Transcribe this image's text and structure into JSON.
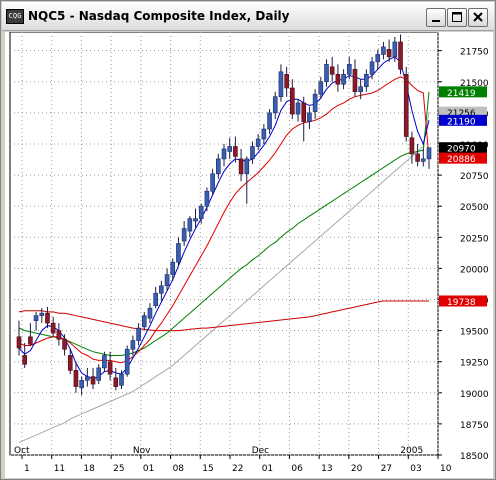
{
  "window": {
    "title": "NQC5 - Nasdaq Composite Index, Daily",
    "icon_text": "CQG"
  },
  "chart_data": {
    "type": "candlestick",
    "ylim": [
      18500,
      21900
    ],
    "y_ticks": [
      18500,
      18750,
      19000,
      19250,
      19500,
      19750,
      20000,
      20250,
      20500,
      20750,
      21000,
      21250,
      21500,
      21750
    ],
    "x_day_labels": [
      "1",
      "11",
      "18",
      "25",
      "01",
      "08",
      "15",
      "22",
      "01",
      "06",
      "13",
      "20",
      "27",
      "03",
      "10"
    ],
    "month_labels": [
      "Oct",
      "Nov",
      "Dec",
      "2005"
    ],
    "grid": true,
    "price_tags": [
      {
        "value": 21419,
        "label": "21419",
        "color": "#008000"
      },
      {
        "value": 21256,
        "label": "21256",
        "color": "#c0c0c0"
      },
      {
        "value": 21190,
        "label": "21190",
        "color": "#0000cc"
      },
      {
        "value": 20970,
        "label": "20970",
        "color": "#000000"
      },
      {
        "value": 20886,
        "label": "20886",
        "color": "#e00000"
      },
      {
        "value": 19738,
        "label": "19738",
        "color": "#e00000"
      }
    ],
    "candles": [
      [
        19450,
        19580,
        19360,
        19300
      ],
      [
        19300,
        19400,
        19230,
        19200
      ],
      [
        19450,
        19560,
        19390,
        19380
      ],
      [
        19580,
        19650,
        19620,
        19500
      ],
      [
        19620,
        19680,
        19640,
        19560
      ],
      [
        19640,
        19690,
        19560,
        19520
      ],
      [
        19560,
        19610,
        19480,
        19450
      ],
      [
        19500,
        19560,
        19430,
        19380
      ],
      [
        19430,
        19470,
        19350,
        19300
      ],
      [
        19300,
        19350,
        19180,
        19150
      ],
      [
        19180,
        19250,
        19050,
        19000
      ],
      [
        19040,
        19130,
        19100,
        18980
      ],
      [
        19100,
        19200,
        19130,
        19050
      ],
      [
        19130,
        19200,
        19070,
        19030
      ],
      [
        19100,
        19230,
        19200,
        19070
      ],
      [
        19200,
        19330,
        19300,
        19170
      ],
      [
        19250,
        19330,
        19150,
        19100
      ],
      [
        19120,
        19200,
        19050,
        19020
      ],
      [
        19060,
        19180,
        19150,
        19030
      ],
      [
        19150,
        19380,
        19350,
        19130
      ],
      [
        19350,
        19460,
        19420,
        19300
      ],
      [
        19420,
        19560,
        19520,
        19380
      ],
      [
        19530,
        19650,
        19620,
        19500
      ],
      [
        19600,
        19720,
        19680,
        19560
      ],
      [
        19700,
        19850,
        19800,
        19680
      ],
      [
        19800,
        19900,
        19860,
        19740
      ],
      [
        19860,
        20000,
        19950,
        19820
      ],
      [
        19950,
        20080,
        20050,
        19900
      ],
      [
        20050,
        20250,
        20200,
        20020
      ],
      [
        20220,
        20380,
        20320,
        20180
      ],
      [
        20300,
        20420,
        20400,
        20250
      ],
      [
        20380,
        20480,
        20400,
        20330
      ],
      [
        20400,
        20520,
        20500,
        20360
      ],
      [
        20500,
        20650,
        20620,
        20460
      ],
      [
        20620,
        20800,
        20760,
        20590
      ],
      [
        20760,
        20920,
        20880,
        20720
      ],
      [
        20880,
        21000,
        20960,
        20820
      ],
      [
        20940,
        21050,
        20980,
        20880
      ],
      [
        20980,
        21060,
        20900,
        20850
      ],
      [
        20880,
        20960,
        20760,
        20700
      ],
      [
        20760,
        20900,
        20880,
        20520
      ],
      [
        20880,
        21020,
        20980,
        20840
      ],
      [
        20980,
        21080,
        21040,
        20950
      ],
      [
        21040,
        21160,
        21120,
        21000
      ],
      [
        21120,
        21280,
        21250,
        21080
      ],
      [
        21250,
        21420,
        21380,
        21200
      ],
      [
        21380,
        21640,
        21580,
        21340
      ],
      [
        21560,
        21620,
        21450,
        21380
      ],
      [
        21450,
        21520,
        21240,
        21200
      ],
      [
        21240,
        21360,
        21330,
        21180
      ],
      [
        21330,
        21380,
        21180,
        21020
      ],
      [
        21180,
        21300,
        21250,
        21120
      ],
      [
        21260,
        21440,
        21400,
        21200
      ],
      [
        21400,
        21540,
        21500,
        21360
      ],
      [
        21500,
        21680,
        21640,
        21460
      ],
      [
        21620,
        21700,
        21560,
        21500
      ],
      [
        21560,
        21640,
        21480,
        21420
      ],
      [
        21480,
        21600,
        21560,
        21440
      ],
      [
        21560,
        21700,
        21640,
        21520
      ],
      [
        21600,
        21680,
        21420,
        21380
      ],
      [
        21420,
        21520,
        21460,
        21360
      ],
      [
        21460,
        21600,
        21560,
        21420
      ],
      [
        21560,
        21700,
        21660,
        21520
      ],
      [
        21660,
        21760,
        21720,
        21600
      ],
      [
        21720,
        21820,
        21780,
        21680
      ],
      [
        21760,
        21840,
        21700,
        21660
      ],
      [
        21700,
        21860,
        21820,
        21660
      ],
      [
        21820,
        21880,
        21600,
        21560
      ],
      [
        21560,
        21620,
        21060,
        21020
      ],
      [
        21050,
        21100,
        20920,
        20840
      ],
      [
        20920,
        21000,
        20860,
        20820
      ],
      [
        20860,
        20960,
        20880,
        20820
      ],
      [
        20880,
        20940,
        20970,
        20800
      ]
    ],
    "ma_short": [
      19360,
      19310,
      19340,
      19420,
      19500,
      19540,
      19530,
      19500,
      19440,
      19350,
      19240,
      19160,
      19130,
      19110,
      19130,
      19170,
      19180,
      19160,
      19150,
      19200,
      19280,
      19360,
      19450,
      19540,
      19640,
      19730,
      19820,
      19910,
      20020,
      20130,
      20230,
      20320,
      20400,
      20490,
      20590,
      20690,
      20780,
      20840,
      20880,
      20870,
      20860,
      20880,
      20930,
      20990,
      21060,
      21150,
      21270,
      21340,
      21360,
      21360,
      21330,
      21310,
      21320,
      21370,
      21440,
      21490,
      21510,
      21520,
      21550,
      21540,
      21520,
      21520,
      21550,
      21600,
      21650,
      21680,
      21700,
      21660,
      21480,
      21270,
      21100,
      21000,
      21190
    ],
    "ma_mid": [
      19400,
      19380,
      19380,
      19400,
      19420,
      19440,
      19450,
      19450,
      19430,
      19400,
      19360,
      19320,
      19300,
      19270,
      19260,
      19260,
      19260,
      19250,
      19240,
      19260,
      19290,
      19330,
      19380,
      19430,
      19500,
      19560,
      19630,
      19700,
      19780,
      19860,
      19940,
      20020,
      20100,
      20180,
      20270,
      20360,
      20450,
      20530,
      20600,
      20650,
      20690,
      20730,
      20770,
      20820,
      20870,
      20930,
      21000,
      21070,
      21120,
      21150,
      21170,
      21180,
      21190,
      21210,
      21240,
      21280,
      21310,
      21330,
      21360,
      21380,
      21390,
      21400,
      21410,
      21430,
      21460,
      21490,
      21520,
      21540,
      21520,
      21470,
      21430,
      21410,
      20886
    ],
    "ma_trend": [
      19520,
      19500,
      19490,
      19480,
      19470,
      19460,
      19450,
      19440,
      19430,
      19410,
      19390,
      19370,
      19350,
      19330,
      19320,
      19310,
      19300,
      19300,
      19300,
      19310,
      19320,
      19340,
      19360,
      19390,
      19420,
      19450,
      19480,
      19520,
      19560,
      19600,
      19640,
      19680,
      19720,
      19760,
      19800,
      19840,
      19880,
      19920,
      19960,
      20000,
      20030,
      20070,
      20100,
      20140,
      20180,
      20210,
      20250,
      20290,
      20320,
      20360,
      20390,
      20420,
      20450,
      20480,
      20510,
      20540,
      20570,
      20600,
      20630,
      20660,
      20690,
      20720,
      20750,
      20780,
      20810,
      20840,
      20870,
      20900,
      20920,
      20930,
      20940,
      20950,
      21419
    ],
    "ma_long": [
      18600,
      18620,
      18640,
      18660,
      18680,
      18700,
      18720,
      18740,
      18760,
      18790,
      18810,
      18830,
      18850,
      18870,
      18890,
      18910,
      18930,
      18950,
      18970,
      18990,
      19010,
      19040,
      19070,
      19100,
      19130,
      19160,
      19190,
      19220,
      19260,
      19300,
      19340,
      19380,
      19420,
      19460,
      19500,
      19540,
      19580,
      19620,
      19660,
      19700,
      19740,
      19780,
      19820,
      19860,
      19900,
      19940,
      19980,
      20020,
      20060,
      20100,
      20140,
      20180,
      20220,
      20260,
      20300,
      20340,
      20380,
      20420,
      20460,
      20500,
      20540,
      20580,
      20620,
      20660,
      20700,
      20740,
      20780,
      20820,
      20860,
      20900,
      20940,
      20980,
      21256
    ],
    "ma_slow": [
      19650,
      19660,
      19660,
      19660,
      19660,
      19650,
      19650,
      19640,
      19640,
      19630,
      19620,
      19610,
      19600,
      19590,
      19580,
      19570,
      19560,
      19550,
      19540,
      19530,
      19520,
      19515,
      19510,
      19505,
      19500,
      19500,
      19500,
      19500,
      19500,
      19505,
      19510,
      19515,
      19520,
      19520,
      19525,
      19530,
      19535,
      19540,
      19545,
      19550,
      19555,
      19560,
      19565,
      19570,
      19575,
      19580,
      19585,
      19590,
      19595,
      19600,
      19605,
      19610,
      19620,
      19630,
      19640,
      19650,
      19660,
      19670,
      19680,
      19690,
      19700,
      19710,
      19720,
      19730,
      19738,
      19738,
      19738,
      19738,
      19738,
      19738,
      19738,
      19738,
      19738
    ]
  }
}
